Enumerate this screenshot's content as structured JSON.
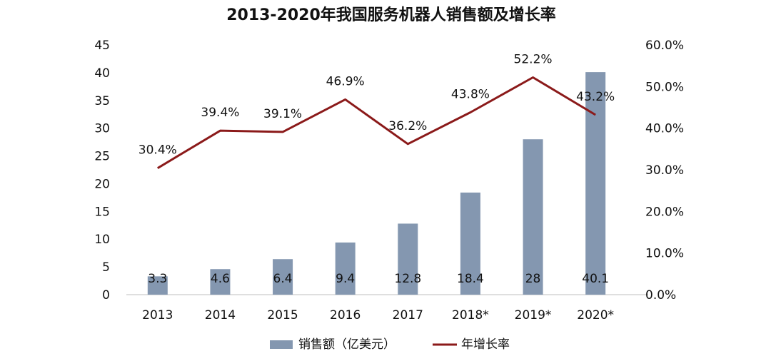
{
  "chart_data": {
    "type": "bar",
    "title": "2013-2020年我国服务机器人销售额及增长率",
    "categories": [
      "2013",
      "2014",
      "2015",
      "2016",
      "2017",
      "2018*",
      "2019*",
      "2020*"
    ],
    "series": [
      {
        "name": "销售额（亿美元）",
        "type": "bar",
        "axis": "left",
        "values": [
          3.3,
          4.6,
          6.4,
          9.4,
          12.8,
          18.4,
          28,
          40.1
        ],
        "labels": [
          "3.3",
          "4.6",
          "6.4",
          "9.4",
          "12.8",
          "18.4",
          "28",
          "40.1"
        ],
        "color": "#8497B0"
      },
      {
        "name": "年增长率",
        "type": "line",
        "axis": "right",
        "values": [
          30.4,
          39.4,
          39.1,
          46.9,
          36.2,
          43.8,
          52.2,
          43.2
        ],
        "labels": [
          "30.4%",
          "39.4%",
          "39.1%",
          "46.9%",
          "36.2%",
          "43.8%",
          "52.2%",
          "43.2%"
        ],
        "color": "#8B1A1A"
      }
    ],
    "y_left": {
      "ylim": [
        0,
        45
      ],
      "ticks": [
        "0",
        "5",
        "10",
        "15",
        "20",
        "25",
        "30",
        "35",
        "40",
        "45"
      ]
    },
    "y_right": {
      "ylim": [
        0,
        60
      ],
      "ticks": [
        "0.0%",
        "10.0%",
        "20.0%",
        "30.0%",
        "40.0%",
        "50.0%",
        "60.0%"
      ]
    },
    "grid": false,
    "legend_position": "bottom"
  }
}
